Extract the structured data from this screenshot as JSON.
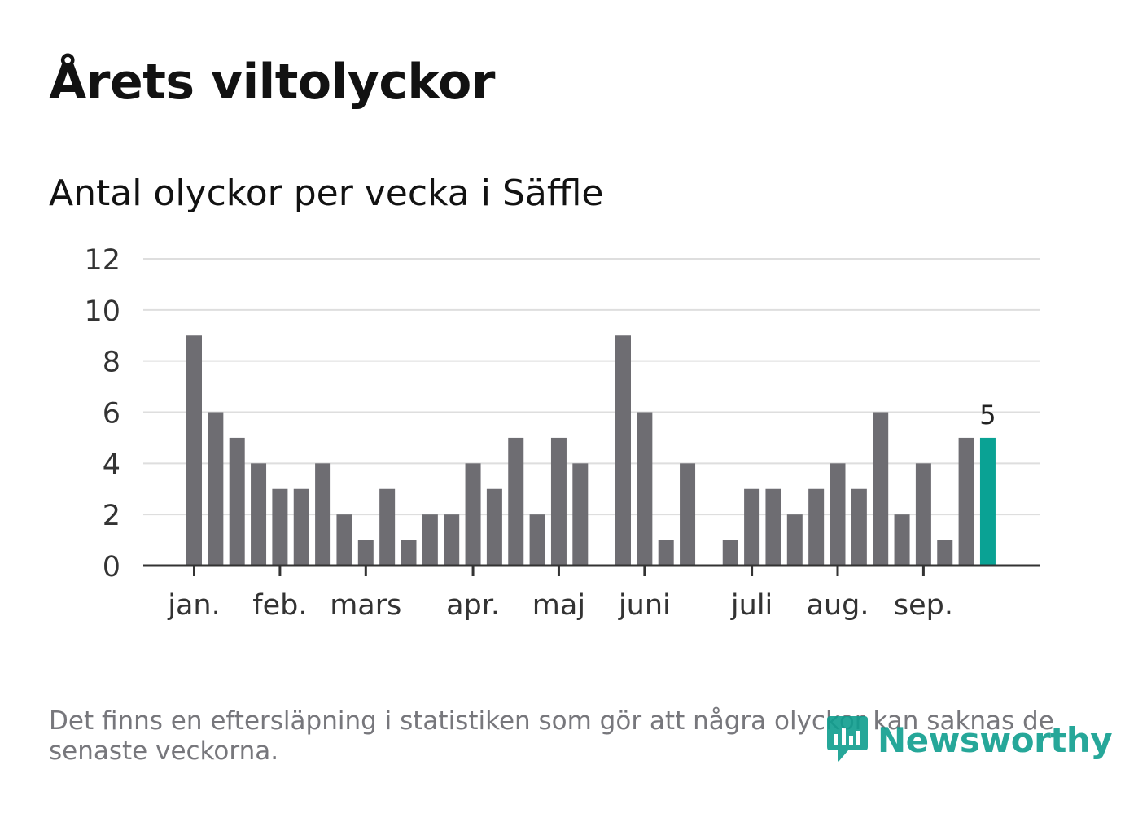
{
  "header": {
    "title": "Årets viltolyckor",
    "subtitle": "Antal olyckor per vecka i Säffle"
  },
  "footer": {
    "note": "Det finns en eftersläpning i statistiken som gör att några olyckor kan saknas de senaste veckorna.",
    "logo_text": "Newsworthy"
  },
  "colors": {
    "bar": "#6e6d72",
    "highlight": "#0aa294",
    "grid": "#dedede",
    "axis": "#333333",
    "tick_label": "#333333",
    "brand": "#0f9e8f"
  },
  "chart_data": {
    "type": "bar",
    "title": "Antal olyckor per vecka i Säffle",
    "xlabel": "",
    "ylabel": "",
    "ylim": [
      0,
      12
    ],
    "yticks": [
      0,
      2,
      4,
      6,
      8,
      10,
      12
    ],
    "grid": true,
    "weeks": [
      1,
      2,
      3,
      4,
      5,
      6,
      7,
      8,
      9,
      10,
      11,
      12,
      13,
      14,
      15,
      16,
      17,
      18,
      19,
      20,
      21,
      22,
      23,
      24,
      25,
      26,
      27,
      28,
      29,
      30,
      31,
      32,
      33,
      34,
      35,
      36,
      37,
      38
    ],
    "values": [
      9,
      6,
      5,
      4,
      3,
      3,
      4,
      2,
      1,
      3,
      1,
      2,
      2,
      4,
      3,
      5,
      2,
      5,
      4,
      0,
      9,
      6,
      1,
      4,
      0,
      1,
      3,
      3,
      2,
      3,
      4,
      3,
      6,
      2,
      4,
      1,
      5,
      5
    ],
    "highlight_index": 37,
    "highlight_label": "5",
    "month_ticks": [
      {
        "label": "jan.",
        "week": 1
      },
      {
        "label": "feb.",
        "week": 5
      },
      {
        "label": "mars",
        "week": 9
      },
      {
        "label": "apr.",
        "week": 14
      },
      {
        "label": "maj",
        "week": 18
      },
      {
        "label": "juni",
        "week": 22
      },
      {
        "label": "juli",
        "week": 27
      },
      {
        "label": "aug.",
        "week": 31
      },
      {
        "label": "sep.",
        "week": 35
      }
    ]
  }
}
